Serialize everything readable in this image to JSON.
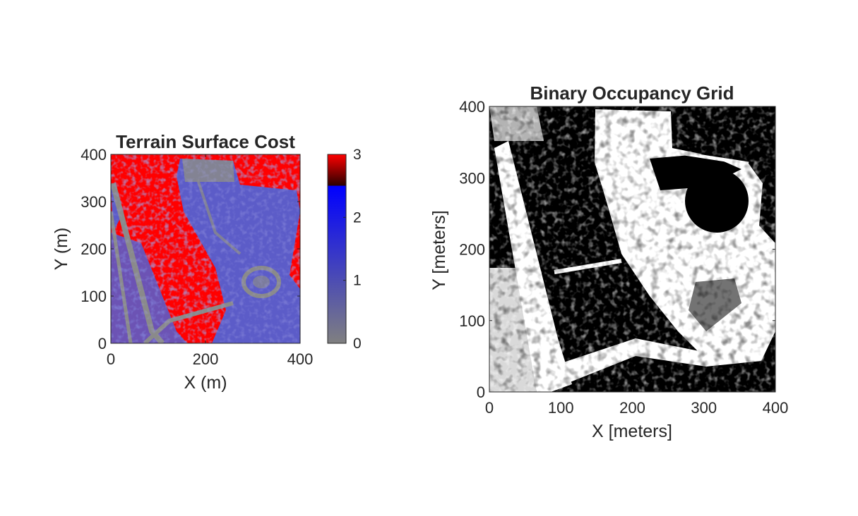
{
  "chart_data": [
    {
      "type": "heatmap",
      "title": "Terrain Surface Cost",
      "xlabel": "X (m)",
      "ylabel": "Y (m)",
      "xlim": [
        0,
        400
      ],
      "ylim": [
        0,
        400
      ],
      "xticks": [
        "0",
        "200",
        "400"
      ],
      "yticks": [
        "0",
        "100",
        "200",
        "300",
        "400"
      ],
      "grid": false,
      "colorbar": {
        "ticks": [
          "0",
          "1",
          "2",
          "3"
        ],
        "range": [
          0,
          3
        ],
        "colors": [
          {
            "value": 0,
            "color": "#808080"
          },
          {
            "value": 2.5,
            "color": "#0000ff"
          },
          {
            "value": 2.5,
            "color": "#2a0000"
          },
          {
            "value": 3,
            "color": "#ff0000"
          }
        ]
      },
      "colors": {
        "high_cost": "#ff0000",
        "mid_cost": "#5c5cc8",
        "low_cost": "#8c8c8c"
      }
    },
    {
      "type": "heatmap",
      "title": "Binary Occupancy Grid",
      "xlabel": "X [meters]",
      "ylabel": "Y [meters]",
      "xlim": [
        0,
        400
      ],
      "ylim": [
        0,
        400
      ],
      "xticks": [
        "0",
        "100",
        "200",
        "300",
        "400"
      ],
      "yticks": [
        "0",
        "100",
        "200",
        "300",
        "400"
      ],
      "grid": false,
      "colors": {
        "occupied": "#000000",
        "free": "#ffffff"
      }
    }
  ]
}
